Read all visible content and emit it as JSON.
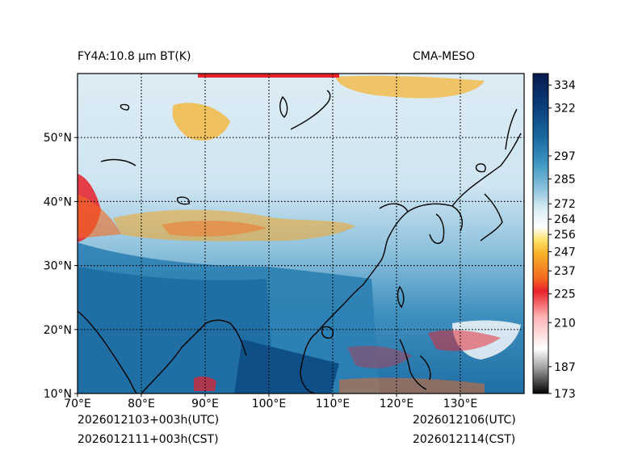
{
  "header": {
    "left_title": "FY4A:10.8 µm BT(K)",
    "right_title": "CMA-MESO"
  },
  "footer": {
    "init_utc": "2026012103+003h(UTC)",
    "init_cst": "2026012111+003h(CST)",
    "valid_utc": "2026012106(UTC)",
    "valid_cst": "2026012114(CST)"
  },
  "map": {
    "lon_ticks": [
      "70°E",
      "80°E",
      "90°E",
      "100°E",
      "110°E",
      "120°E",
      "130°E"
    ],
    "lat_ticks": [
      "10°N",
      "20°N",
      "30°N",
      "40°N",
      "50°N"
    ],
    "lon_range": [
      70,
      140
    ],
    "lat_range": [
      10,
      60
    ]
  },
  "colorbar": {
    "ticks": [
      "334",
      "322",
      "297",
      "285",
      "272",
      "264",
      "256",
      "247",
      "237",
      "225",
      "210",
      "187",
      "173"
    ],
    "tick_values": [
      334,
      322,
      297,
      285,
      272,
      264,
      256,
      247,
      237,
      225,
      210,
      187,
      173
    ],
    "range": [
      173,
      340
    ]
  },
  "colors": {
    "ocean_warm": "#1d6fa3",
    "land_warm": "#2e86b6",
    "cold_cloud": "#e8f2f8",
    "very_cold": "#f5a623",
    "extreme_cold": "#e8202a",
    "coastline": "#000000"
  }
}
